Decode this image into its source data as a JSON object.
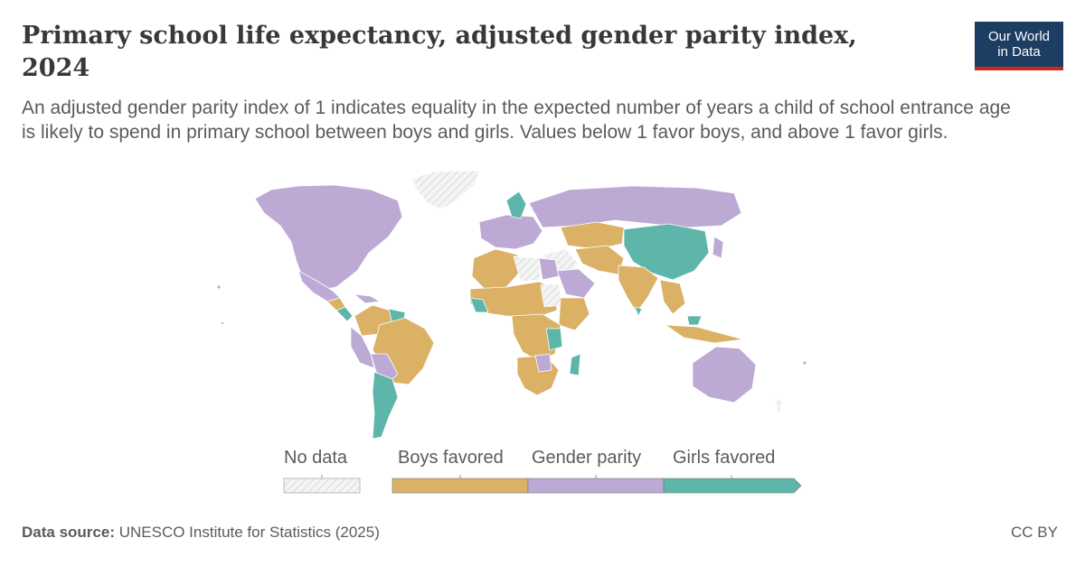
{
  "header": {
    "title": "Primary school life expectancy, adjusted gender parity index, 2024",
    "subtitle": "An adjusted gender parity index of 1 indicates equality in the expected number of years a child of school entrance age is likely to spend in primary school between boys and girls. Values below 1 favor boys, and above 1 favor girls."
  },
  "logo": {
    "line1": "Our World",
    "line2": "in Data"
  },
  "colors": {
    "boys_favored": "#dab165",
    "gender_parity": "#bcaad5",
    "girls_favored": "#5eb5a9",
    "no_data": "#eeeeee",
    "logo_bg": "#1d3d63",
    "logo_accent": "#ce261e"
  },
  "legend": {
    "no_data": "No data",
    "boys": "Boys favored",
    "parity": "Gender parity",
    "girls": "Girls favored"
  },
  "footer": {
    "source_label": "Data source:",
    "source_text": "UNESCO Institute for Statistics (2025)",
    "license": "CC BY"
  }
}
